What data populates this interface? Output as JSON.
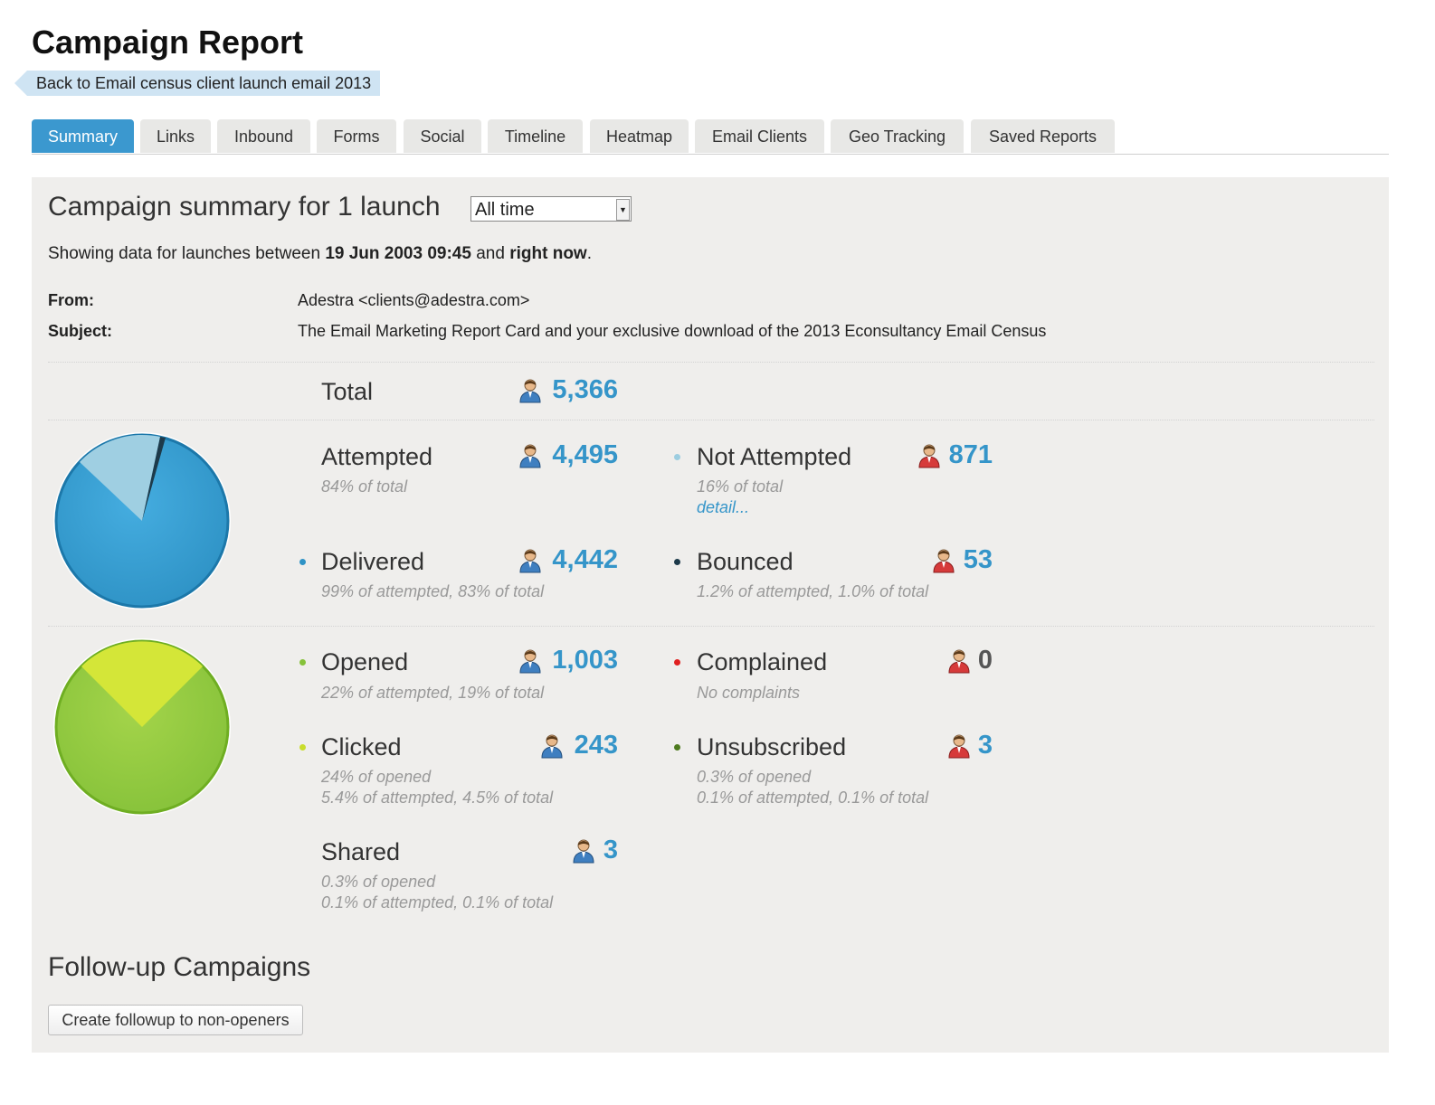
{
  "header": {
    "title": "Campaign Report",
    "back_link": "Back to Email census client launch email 2013"
  },
  "tabs": [
    {
      "label": "Summary",
      "active": true
    },
    {
      "label": "Links"
    },
    {
      "label": "Inbound"
    },
    {
      "label": "Forms"
    },
    {
      "label": "Social"
    },
    {
      "label": "Timeline"
    },
    {
      "label": "Heatmap"
    },
    {
      "label": "Email Clients"
    },
    {
      "label": "Geo Tracking"
    },
    {
      "label": "Saved Reports"
    }
  ],
  "summary": {
    "title": "Campaign summary for 1 launch",
    "period_select": "All time",
    "range_prefix": "Showing data for launches between",
    "range_start": "19 Jun 2003 09:45",
    "range_and": "and",
    "range_end": "right now",
    "range_suffix": ".",
    "from_label": "From:",
    "from_value": "Adestra <clients@adestra.com>",
    "subject_label": "Subject:",
    "subject_value": "The Email Marketing Report Card and your exclusive download of the 2013 Econsultancy Email Census"
  },
  "stats": {
    "total": {
      "label": "Total",
      "value": "5,366"
    },
    "attempted": {
      "label": "Attempted",
      "value": "4,495",
      "sub": "84% of total"
    },
    "not_attempted": {
      "label": "Not Attempted",
      "value": "871",
      "sub": "16% of total",
      "link": "detail..."
    },
    "delivered": {
      "label": "Delivered",
      "value": "4,442",
      "sub": "99% of attempted, 83% of total"
    },
    "bounced": {
      "label": "Bounced",
      "value": "53",
      "sub": "1.2% of attempted, 1.0% of total"
    },
    "opened": {
      "label": "Opened",
      "value": "1,003",
      "sub": "22% of attempted, 19% of total"
    },
    "complained": {
      "label": "Complained",
      "value": "0",
      "sub": "No complaints"
    },
    "clicked": {
      "label": "Clicked",
      "value": "243",
      "sub1": "24% of opened",
      "sub2": "5.4% of attempted, 4.5% of total"
    },
    "unsubscribed": {
      "label": "Unsubscribed",
      "value": "3",
      "sub1": "0.3% of opened",
      "sub2": "0.1% of attempted, 0.1% of total"
    },
    "shared": {
      "label": "Shared",
      "value": "3",
      "sub1": "0.3% of opened",
      "sub2": "0.1% of attempted, 0.1% of total"
    }
  },
  "colors": {
    "accent": "#3b98cf",
    "delivered": "#2f93c6",
    "not_attempted": "#9ccde0",
    "bounced": "#1d3a4a",
    "opened": "#86c23a",
    "clicked": "#c9dd2c",
    "complained": "#e02020",
    "unsubscribed": "#4d7a1e"
  },
  "icons": {
    "recipient_good": "person-blue-icon",
    "recipient_bad": "person-red-icon"
  },
  "followup": {
    "title": "Follow-up Campaigns",
    "button": "Create followup to non-openers"
  }
}
